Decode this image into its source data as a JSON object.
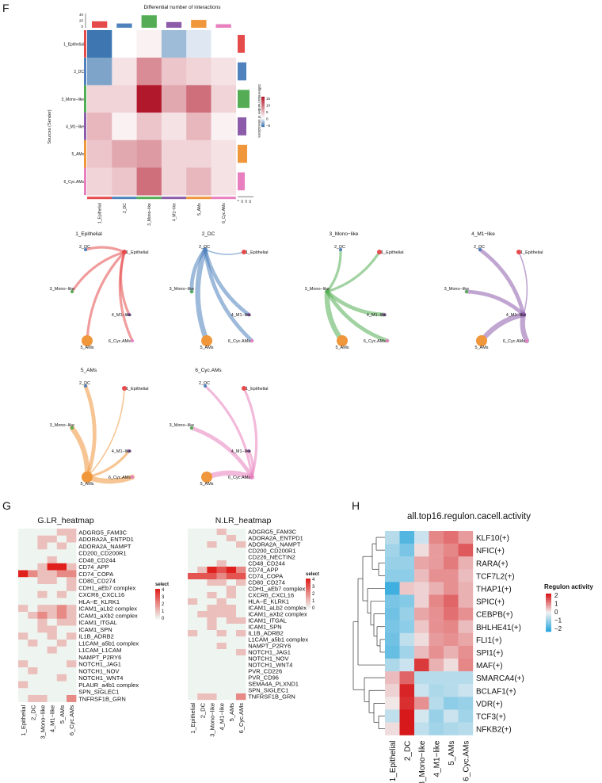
{
  "panels": {
    "F": "F",
    "G": "G",
    "H": "H"
  },
  "palette": {
    "groups": [
      "#e64b4b",
      "#4f81bd",
      "#54ad54",
      "#8c5cab",
      "#f0963b",
      "#e87fbe"
    ],
    "diff_low": "#3d76b0",
    "diff_mid": "#ffffff",
    "diff_high": "#b2182b",
    "lr_low": "#eef4ef",
    "lr_high": "#e0201d",
    "h_low": "#2aa7dc",
    "h_mid": "#f2f2f2",
    "h_high": "#d7191c"
  },
  "chart_data": [
    {
      "id": "F-heatmap",
      "type": "heatmap",
      "title": "Differential number of interactions",
      "ylabel": "Sources (Sender)",
      "legend_title": "Differential number of interactions",
      "legend_ticks": [
        "15",
        "10",
        "5",
        "0",
        "−5"
      ],
      "top_axis_ticks": [
        "40",
        "20",
        "0"
      ],
      "right_axis_ticks": [
        "0",
        "20",
        "40",
        "60"
      ],
      "rows": [
        "1_Epithelial",
        "2_DC",
        "3_Mono−like",
        "4_M1−like",
        "5_AMs",
        "6_Cyc.AMs"
      ],
      "cols": [
        "1_Epithelial",
        "2_DC",
        "3_Mono−like",
        "4_M1−like",
        "5_AMs",
        "6_Cyc.AMs"
      ],
      "values": [
        [
          -6,
          0,
          1,
          -3,
          -1,
          0
        ],
        [
          -4,
          2,
          8,
          4,
          3,
          2
        ],
        [
          3,
          3,
          16,
          6,
          10,
          3
        ],
        [
          5,
          1,
          4,
          2,
          5,
          1
        ],
        [
          4,
          6,
          7,
          3,
          3,
          2
        ],
        [
          3,
          4,
          10,
          3,
          5,
          2
        ]
      ],
      "col_bars": [
        18,
        12,
        35,
        16,
        22,
        10
      ],
      "row_bars": [
        18,
        22,
        30,
        22,
        24,
        18
      ]
    },
    {
      "id": "F-circles",
      "type": "network",
      "nodes": [
        "1_Epithelial",
        "2_DC",
        "3_Mono−like",
        "4_M1−like",
        "5_AMs",
        "6_Cyc.AMs"
      ],
      "node_sizes": [
        3,
        2,
        2,
        2,
        7,
        2
      ],
      "panels": [
        {
          "title": "1_Epithelial",
          "source": 0,
          "weights": [
            0,
            2,
            2,
            2,
            2,
            2
          ]
        },
        {
          "title": "2_DC",
          "source": 1,
          "weights": [
            1,
            0,
            3,
            3,
            4,
            3
          ]
        },
        {
          "title": "3_Mono−like",
          "source": 2,
          "weights": [
            2,
            2,
            0,
            3,
            4,
            3
          ]
        },
        {
          "title": "4_M1−like",
          "source": 3,
          "weights": [
            1,
            3,
            3,
            0,
            4,
            4
          ]
        },
        {
          "title": "5_AMs",
          "source": 4,
          "weights": [
            1,
            3,
            4,
            2,
            0,
            4
          ]
        },
        {
          "title": "6_Cyc.AMs",
          "source": 5,
          "weights": [
            2,
            2,
            3,
            2,
            4,
            0
          ]
        }
      ]
    },
    {
      "id": "G-left",
      "type": "heatmap",
      "title": "G.LR_heatmap",
      "legend_title": "select",
      "legend_ticks": [
        "4",
        "3",
        "2",
        "1",
        "0"
      ],
      "cols": [
        "1_Epithelial",
        "2_DC",
        "3_Mono−like",
        "4_M1−like",
        "5_AMs",
        "6_Cyc.AMs"
      ],
      "rows": [
        "ADGRG5_FAM3C",
        "ADORA2A_ENTPD1",
        "ADORA2A_NAMPT",
        "CD200_CD200R1",
        "CD48_CD244",
        "CD74_APP",
        "CD74_COPA",
        "CD80_CD274",
        "CDH1_aEb7 complex",
        "CXCR6_CXCL16",
        "HLA−E_KLRK1",
        "ICAM1_aLb2 complex",
        "ICAM1_aXb2 complex",
        "ICAM1_ITGAL",
        "ICAM1_SPN",
        "IL1B_ADRB2",
        "L1CAM_a5b1 complex",
        "L1CAM_L1CAM",
        "NAMPT_P2RY6",
        "NOTCH1_JAG1",
        "NOTCH1_NOV",
        "NOTCH1_WNT4",
        "PLAUR_a4b1 complex",
        "SPN_SIGLEC1",
        "TNFRSF1B_GRN"
      ],
      "values": [
        [
          0,
          0,
          0,
          0,
          1,
          1
        ],
        [
          0,
          0,
          1,
          1,
          0,
          1
        ],
        [
          0,
          0,
          1,
          0,
          1,
          0
        ],
        [
          0,
          0,
          0,
          0,
          0,
          0
        ],
        [
          0,
          0,
          0,
          1,
          0,
          0
        ],
        [
          0,
          0,
          1,
          4,
          4,
          1
        ],
        [
          4,
          2,
          1,
          1,
          2,
          2
        ],
        [
          0,
          0,
          1,
          1,
          0,
          1
        ],
        [
          0,
          0,
          0,
          0,
          0,
          1
        ],
        [
          0,
          0,
          1,
          0,
          1,
          0
        ],
        [
          0,
          0,
          0,
          0,
          0,
          0
        ],
        [
          1,
          0,
          1,
          1,
          2,
          1
        ],
        [
          0,
          1,
          2,
          1,
          2,
          1
        ],
        [
          0,
          0,
          1,
          0,
          1,
          1
        ],
        [
          0,
          0,
          1,
          1,
          0,
          0
        ],
        [
          1,
          0,
          0,
          1,
          0,
          1
        ],
        [
          0,
          1,
          0,
          0,
          1,
          0
        ],
        [
          0,
          0,
          0,
          1,
          0,
          0
        ],
        [
          0,
          0,
          0,
          0,
          0,
          0
        ],
        [
          1,
          0,
          0,
          0,
          0,
          1
        ],
        [
          0,
          1,
          0,
          0,
          0,
          0
        ],
        [
          0,
          0,
          0,
          0,
          1,
          0
        ],
        [
          1,
          0,
          0,
          0,
          0,
          0
        ],
        [
          0,
          0,
          0,
          0,
          0,
          0
        ],
        [
          0,
          1,
          1,
          0,
          0,
          2
        ]
      ]
    },
    {
      "id": "G-right",
      "type": "heatmap",
      "title": "N.LR_heatmap",
      "legend_title": "select",
      "legend_ticks": [
        "4",
        "3",
        "2",
        "1",
        "0"
      ],
      "cols": [
        "1_Epithelial",
        "2_DC",
        "3_Mono−like",
        "4_M1−like",
        "5_AMs",
        "6_Cyc.AMs"
      ],
      "rows": [
        "ADGRG5_FAM3C",
        "ADORA2A_ENTPD1",
        "ADORA2A_NAMPT",
        "CD200_CD200R1",
        "CD226_NECTIN2",
        "CD48_CD244",
        "CD74_APP",
        "CD74_COPA",
        "CD80_CD274",
        "CDH1_aEb7 complex",
        "CXCR6_CXCL16",
        "HLA−E_KLRK1",
        "ICAM1_aLb2 complex",
        "ICAM1_aXb2 complex",
        "ICAM1_ITGAL",
        "ICAM1_SPN",
        "IL1B_ADRB2",
        "L1CAM_a5b1 complex",
        "NAMPT_P2RY6",
        "NOTCH1_JAG1",
        "NOTCH1_NOV",
        "NOTCH1_WNT4",
        "PVR_CD226",
        "PVR_CD96",
        "SEMA4A_PLXND1",
        "SPN_SIGLEC1",
        "TNFRSF1B_GRN"
      ],
      "values": [
        [
          0,
          0,
          0,
          1,
          0,
          0
        ],
        [
          0,
          0,
          0,
          0,
          1,
          0
        ],
        [
          0,
          0,
          1,
          0,
          0,
          1
        ],
        [
          0,
          0,
          0,
          0,
          0,
          0
        ],
        [
          0,
          0,
          0,
          0,
          0,
          0
        ],
        [
          0,
          0,
          0,
          1,
          0,
          0
        ],
        [
          0,
          1,
          4,
          3,
          4,
          2
        ],
        [
          3,
          3,
          3,
          2,
          3,
          3
        ],
        [
          0,
          0,
          1,
          1,
          0,
          1
        ],
        [
          0,
          0,
          0,
          0,
          1,
          0
        ],
        [
          0,
          0,
          1,
          0,
          1,
          0
        ],
        [
          1,
          0,
          0,
          1,
          0,
          0
        ],
        [
          0,
          0,
          1,
          1,
          1,
          0
        ],
        [
          0,
          1,
          1,
          1,
          1,
          0
        ],
        [
          0,
          0,
          1,
          0,
          1,
          1
        ],
        [
          0,
          0,
          1,
          0,
          0,
          0
        ],
        [
          1,
          0,
          0,
          1,
          0,
          1
        ],
        [
          0,
          0,
          0,
          0,
          0,
          0
        ],
        [
          0,
          0,
          0,
          1,
          0,
          0
        ],
        [
          0,
          0,
          0,
          0,
          0,
          1
        ],
        [
          0,
          0,
          0,
          0,
          0,
          0
        ],
        [
          0,
          0,
          0,
          0,
          0,
          0
        ],
        [
          0,
          0,
          0,
          0,
          0,
          0
        ],
        [
          0,
          0,
          0,
          0,
          0,
          0
        ],
        [
          0,
          0,
          0,
          0,
          0,
          0
        ],
        [
          0,
          0,
          0,
          0,
          0,
          0
        ],
        [
          0,
          1,
          1,
          0,
          0,
          2
        ]
      ]
    },
    {
      "id": "H-heatmap",
      "type": "heatmap",
      "title": "all.top16.regulon.cacell.activity",
      "legend_title": "Regulon activity",
      "legend_ticks": [
        "2",
        "1",
        "0",
        "−1",
        "−2"
      ],
      "cols": [
        "1_Epithelial",
        "2_DC",
        "3_Mono−like",
        "4_M1−like",
        "5_AMs",
        "6_Cyc.AMs"
      ],
      "rows": [
        "KLF10(+)",
        "NFIC(+)",
        "RARA(+)",
        "TCF7L2(+)",
        "THAP1(+)",
        "SPIC(+)",
        "CEBPB(+)",
        "BHLHE41(+)",
        "FLI1(+)",
        "SPI1(+)",
        "MAF(+)",
        "SMARCA4(+)",
        "BCLAF1(+)",
        "VDR(+)",
        "TCF3(+)",
        "NFKB2(+)"
      ],
      "values": [
        [
          -0.6,
          -1.6,
          -0.4,
          1.0,
          1.2,
          0.8
        ],
        [
          -0.8,
          -1.2,
          0.2,
          0.8,
          1.0,
          1.4
        ],
        [
          -0.9,
          -0.9,
          0.7,
          0.8,
          1.1,
          0.6
        ],
        [
          -1.0,
          -1.0,
          0.5,
          0.9,
          0.9,
          0.5
        ],
        [
          -1.8,
          0.4,
          0.3,
          0.6,
          0.9,
          0.6
        ],
        [
          -1.2,
          -1.1,
          0.3,
          1.0,
          1.3,
          0.6
        ],
        [
          -1.3,
          -0.9,
          0.7,
          0.9,
          1.2,
          0.9
        ],
        [
          -1.2,
          -1.0,
          0.4,
          0.9,
          1.0,
          0.5
        ],
        [
          -1.3,
          -0.5,
          0.2,
          0.8,
          0.9,
          0.7
        ],
        [
          -1.4,
          -0.8,
          0.5,
          0.9,
          0.6,
          0.9
        ],
        [
          -0.7,
          -0.4,
          1.7,
          0.6,
          0.2,
          1.0
        ],
        [
          0.5,
          1.3,
          -0.6,
          -0.6,
          -0.6,
          -0.6
        ],
        [
          0.3,
          1.9,
          -0.4,
          -0.7,
          -0.6,
          -0.4
        ],
        [
          0.1,
          1.8,
          0.9,
          -0.6,
          -1.0,
          -0.9
        ],
        [
          -0.5,
          2.0,
          -0.3,
          -0.9,
          -0.4,
          -0.8
        ],
        [
          0.2,
          2.1,
          -0.5,
          -0.8,
          -0.7,
          -0.6
        ]
      ]
    }
  ]
}
